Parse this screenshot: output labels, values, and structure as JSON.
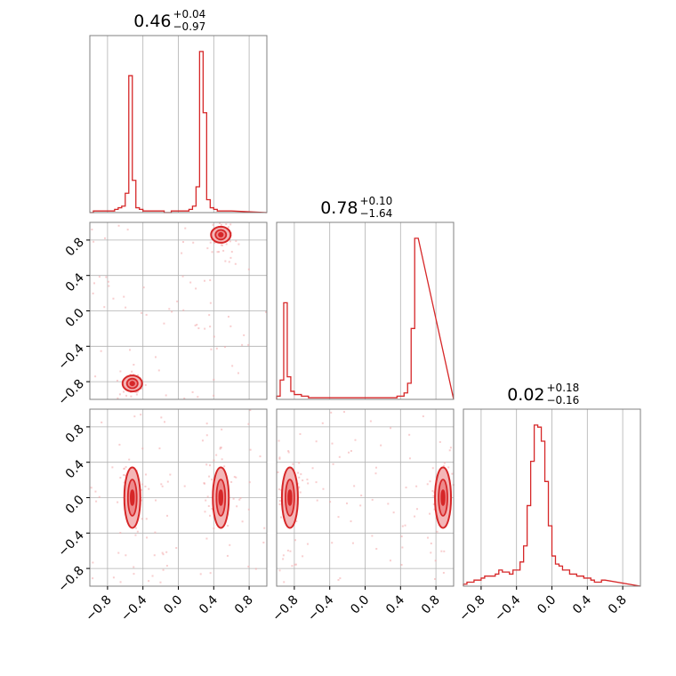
{
  "chart_data": {
    "type": "corner",
    "color": "#d62728",
    "fill_color": "#f4b6b7",
    "grid": true,
    "ticks": {
      "values": [
        -0.8,
        -0.4,
        0.0,
        0.4,
        0.8
      ],
      "labels": [
        "−0.8",
        "−0.4",
        "0.0",
        "0.4",
        "0.8"
      ]
    },
    "axis_range": [
      -1.0,
      1.0
    ],
    "parameters": [
      {
        "title_value": "0.46",
        "title_plus": "+0.04",
        "title_minus": "−0.97"
      },
      {
        "title_value": "0.78",
        "title_plus": "+0.10",
        "title_minus": "−1.64"
      },
      {
        "title_value": "0.02",
        "title_plus": "+0.18",
        "title_minus": "−0.16"
      }
    ],
    "histograms": [
      {
        "bin_start": -1.0,
        "bin_width": 0.04,
        "counts": [
          0,
          1,
          1,
          1,
          1,
          1,
          1,
          2,
          3,
          4,
          12,
          85,
          20,
          3,
          2,
          1,
          1,
          1,
          1,
          1,
          1,
          0,
          0,
          1,
          1,
          1,
          1,
          1,
          2,
          4,
          16,
          100,
          62,
          8,
          3,
          2,
          1,
          1,
          1,
          1
        ]
      },
      {
        "bin_start": -1.0,
        "bin_width": 0.04,
        "counts": [
          2,
          12,
          60,
          14,
          5,
          3,
          3,
          2,
          2,
          1,
          1,
          1,
          1,
          1,
          1,
          1,
          1,
          1,
          1,
          1,
          1,
          1,
          1,
          1,
          1,
          1,
          1,
          1,
          1,
          1,
          1,
          1,
          1,
          1,
          2,
          2,
          4,
          10,
          44,
          100
        ]
      },
      {
        "bin_start": -1.0,
        "bin_width": 0.04,
        "counts": [
          1,
          2,
          2,
          3,
          3,
          4,
          5,
          5,
          5,
          6,
          8,
          7,
          7,
          6,
          8,
          8,
          12,
          20,
          40,
          62,
          80,
          79,
          72,
          52,
          30,
          15,
          11,
          10,
          8,
          8,
          6,
          6,
          5,
          5,
          4,
          4,
          3,
          2,
          2,
          3
        ]
      }
    ],
    "joint_modes": [
      {
        "panel": "x1_vs_x0",
        "modes": [
          {
            "x": 0.48,
            "y": 0.86
          },
          {
            "x": -0.52,
            "y": -0.82
          }
        ]
      },
      {
        "panel": "x2_vs_x0",
        "modes": [
          {
            "x": -0.52,
            "y": 0.0
          },
          {
            "x": 0.48,
            "y": 0.0
          }
        ]
      },
      {
        "panel": "x2_vs_x1",
        "modes": [
          {
            "x": -0.85,
            "y": 0.0
          },
          {
            "x": 0.88,
            "y": 0.0
          }
        ]
      }
    ]
  }
}
